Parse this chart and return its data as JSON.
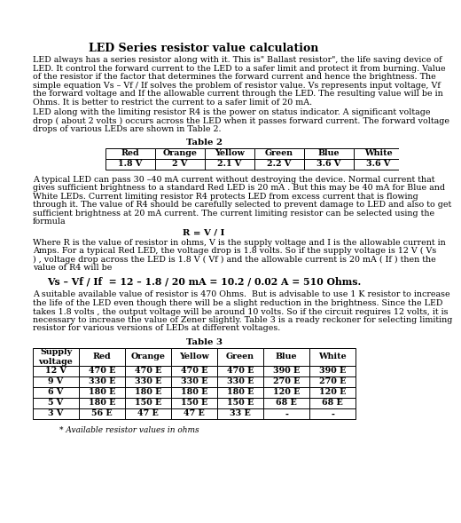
{
  "title": "LED Series resistor value calculation",
  "para1_lines": [
    "LED always has a series resistor along with it. This is\" Ballast resistor\", the life saving device of",
    "LED. It control the forward current to the LED to a safer limit and protect it from burning. Value",
    "of the resistor if the factor that determines the forward current and hence the brightness. The",
    "simple equation Vs – Vf / If solves the problem of resistor value. Vs represents input voltage, Vf",
    "the forward voltage and If the allowable current through the LED. The resulting value will be in",
    "Ohms. It is better to restrict the current to a safer limit of 20 mA."
  ],
  "para2_lines": [
    "LED along with the limiting resistor R4 is the power on status indicator. A significant voltage",
    "drop ( about 2 volts ) occurs across the LED when it passes forward current. The forward voltage",
    "drops of various LEDs are shown in Table 2."
  ],
  "table2_title": "Table 2",
  "table2_headers": [
    "Red",
    "Orange",
    "Yellow",
    "Green",
    "Blue",
    "White"
  ],
  "table2_values": [
    "1.8 V",
    "2 V",
    "2.1 V",
    "2.2 V",
    "3.6 V",
    "3.6 V"
  ],
  "para3_lines": [
    "A typical LED can pass 30 –40 mA current without destroying the device. Normal current that",
    "gives sufficient brightness to a standard Red LED is 20 mA . But this may be 40 mA for Blue and",
    "White LEDs. Current limiting resistor R4 protects LED from excess current that is flowing",
    "through it. The value of R4 should be carefully selected to prevent damage to LED and also to get",
    "sufficient brightness at 20 mA current. The current limiting resistor can be selected using the",
    "formula"
  ],
  "formula1": "R = V / I",
  "para4_lines": [
    "Where R is the value of resistor in ohms, V is the supply voltage and I is the allowable current in",
    "Amps. For a typical Red LED, the voltage drop is 1.8 volts. So if the supply voltage is 12 V ( Vs",
    ") , voltage drop across the LED is 1.8 V ( Vf ) and the allowable current is 20 mA ( If ) then the",
    "value of R4 will be"
  ],
  "formula2": "Vs – Vf / If  = 12 – 1.8 / 20 mA = 10.2 / 0.02 A = 510 Ohms.",
  "para5_lines": [
    "A suitable available value of resistor is 470 Ohms.  But is advisable to use 1 K resistor to increase",
    "the life of the LED even though there will be a slight reduction in the brightness. Since the LED",
    "takes 1.8 volts , the output voltage will be around 10 volts. So if the circuit requires 12 volts, it is",
    "necessary to increase the value of Zener slightly. Table 3 is a ready reckoner for selecting limiting",
    "resistor for various versions of LEDs at different voltages."
  ],
  "table3_title": "Table 3",
  "table3_headers": [
    "Supply\nvoltage",
    "Red",
    "Orange",
    "Yellow",
    "Green",
    "Blue",
    "White"
  ],
  "table3_rows": [
    [
      "12 V",
      "470 E",
      "470 E",
      "470 E",
      "470 E",
      "390 E",
      "390 E"
    ],
    [
      "9 V",
      "330 E",
      "330 E",
      "330 E",
      "330 E",
      "270 E",
      "270 E"
    ],
    [
      "6 V",
      "180 E",
      "180 E",
      "180 E",
      "180 E",
      "120 E",
      "120 E"
    ],
    [
      "5 V",
      "180 E",
      "150 E",
      "150 E",
      "150 E",
      "68 E",
      "68 E"
    ],
    [
      "3 V",
      "56 E",
      "47 E",
      "47 E",
      "33 E",
      "-",
      "-"
    ]
  ],
  "footnote": "* Available resistor values in ohms",
  "bg_color": "#ffffff",
  "text_color": "#000000",
  "font_size": 6.8,
  "title_font_size": 9.0
}
